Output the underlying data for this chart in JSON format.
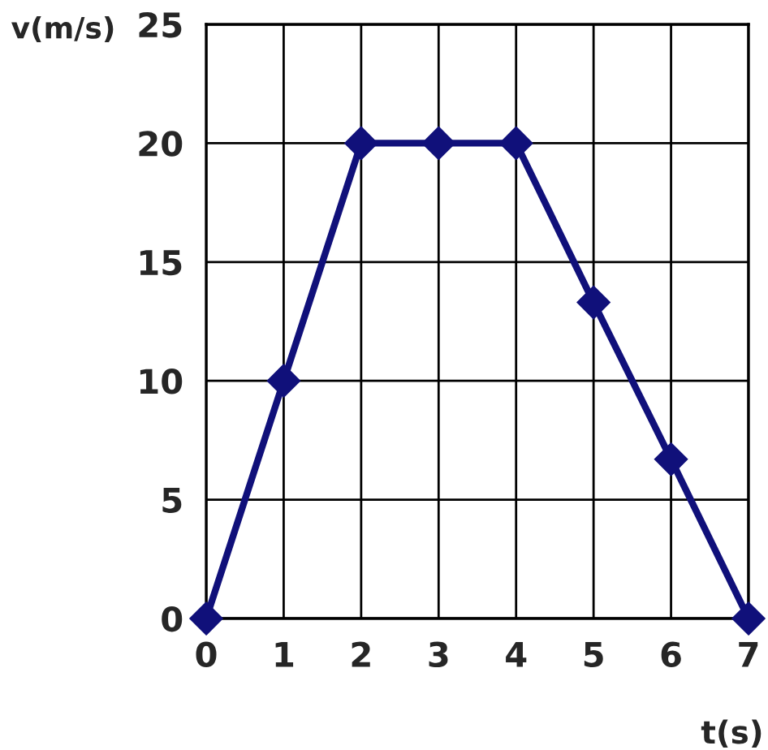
{
  "chart_data": {
    "type": "line",
    "xlabel": "t(s)",
    "ylabel": "v(m/s)",
    "x": [
      0,
      1,
      2,
      3,
      4,
      5,
      6,
      7
    ],
    "series": [
      {
        "color": "#10107a",
        "values": [
          0,
          10,
          20,
          20,
          20,
          13.3,
          6.7,
          0
        ]
      }
    ],
    "xlim": [
      0,
      7
    ],
    "ylim": [
      0,
      25
    ],
    "xticks": [
      0,
      1,
      2,
      3,
      4,
      5,
      6,
      7
    ],
    "yticks": [
      0,
      5,
      10,
      15,
      20,
      25
    ],
    "grid": true,
    "marker": "diamond",
    "line_style": "solid"
  }
}
